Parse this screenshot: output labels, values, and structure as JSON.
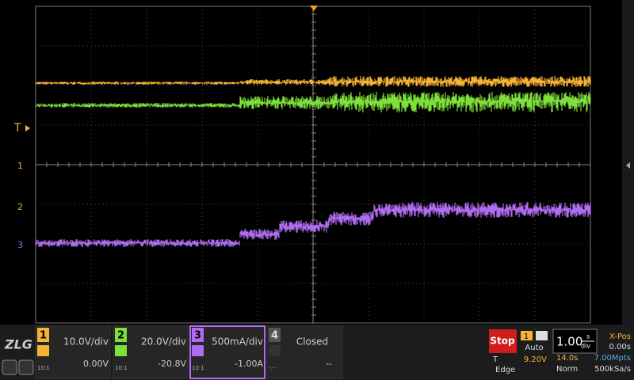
{
  "markers": {
    "trigger": "T",
    "ch1": "1",
    "ch2": "2",
    "ch3": "3"
  },
  "channels": [
    {
      "number": "1",
      "scale": "10.0V/div",
      "offset": "0.00V",
      "probe": "10:1"
    },
    {
      "number": "2",
      "scale": "20.0V/div",
      "offset": "-20.8V",
      "probe": "10:1"
    },
    {
      "number": "3",
      "scale": "500mA/div",
      "offset": "-1.00A",
      "probe": "10:1"
    },
    {
      "number": "4",
      "scale": "Closed",
      "offset": "--",
      "probe": "-.--"
    }
  ],
  "trigger": {
    "status": "Stop",
    "source": "1",
    "mode": "Auto",
    "label": "T",
    "level": "9.20V",
    "type": "Edge"
  },
  "timebase": {
    "scale": "1.00",
    "unit_top": "s",
    "unit_bottom": "div",
    "xpos_label": "X-Pos",
    "xpos": "0.00s",
    "length": "14.0s",
    "memory": "7.00Mpts",
    "acq": "Norm",
    "rate": "500kSa/s"
  },
  "logo": "ZLG"
}
